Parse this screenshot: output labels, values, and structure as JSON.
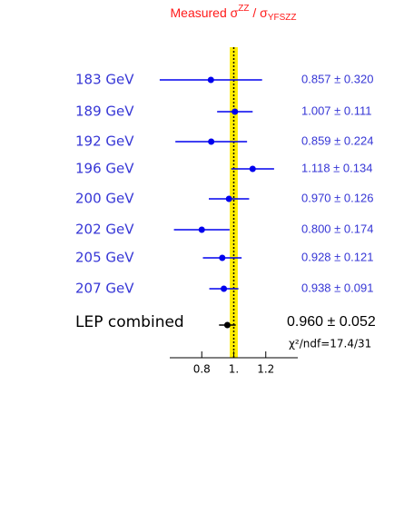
{
  "chart_data": {
    "type": "forest",
    "title": [
      "Measured σ",
      "ZZ",
      " / σ",
      "YFSZZ"
    ],
    "title_color": "#ff1a1a",
    "categories": [
      "183 GeV",
      "189 GeV",
      "192 GeV",
      "196 GeV",
      "200 GeV",
      "202 GeV",
      "205 GeV",
      "207 GeV"
    ],
    "values": [
      0.857,
      1.007,
      0.859,
      1.118,
      0.97,
      0.8,
      0.928,
      0.938
    ],
    "errors": [
      0.32,
      0.111,
      0.224,
      0.134,
      0.126,
      0.174,
      0.121,
      0.091
    ],
    "value_labels": [
      "0.857 ± 0.320",
      "1.007 ± 0.111",
      "0.859 ± 0.224",
      "1.118 ± 0.134",
      "0.970 ± 0.126",
      "0.800 ± 0.174",
      "0.928 ± 0.121",
      "0.938 ± 0.091"
    ],
    "color": "#0000ee",
    "label_color": "#3636d6",
    "combined": {
      "label": "LEP combined",
      "value": 0.96,
      "error": 0.052,
      "value_label": "0.960 ± 0.052",
      "color": "#000000"
    },
    "annotation": "χ²/ndf=17.4/31",
    "reference": 1,
    "band": [
      0.975,
      1.025
    ],
    "band_color": "#ffee00",
    "xlim": [
      0.6,
      1.4
    ],
    "xticks": [
      0.8,
      {
        "value": 1,
        "label": "1."
      },
      1.2
    ]
  }
}
